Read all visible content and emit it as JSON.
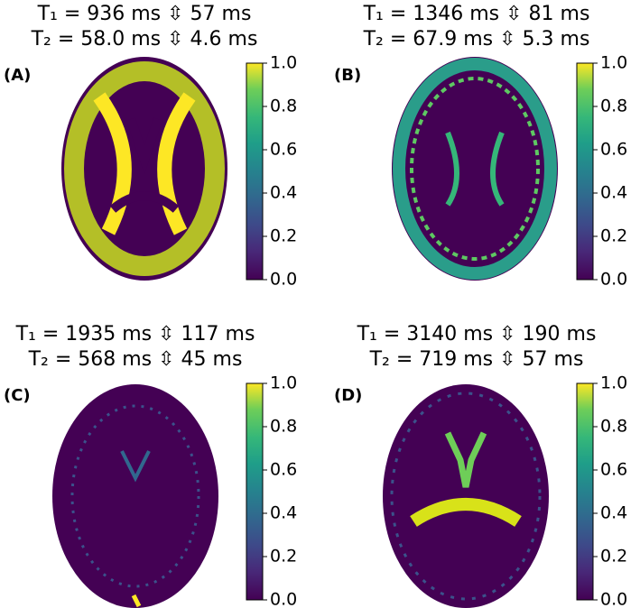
{
  "panels": [
    {
      "label": "(A)",
      "title": [
        "T₁ = 936 ms ⇳ 57 ms",
        "T₂ = 58.0 ms ⇳ 4.6 ms"
      ],
      "colorbar": {
        "ylim": [
          0,
          1
        ],
        "yticks": [
          {
            "value": 0,
            "label": "0.0"
          },
          0.2,
          0.4,
          0.6,
          0.8,
          {
            "value": 1,
            "label": "1.0"
          }
        ]
      }
    },
    {
      "label": "(B)",
      "title": [
        "T₁ = 1346 ms ⇳ 81 ms",
        "T₂ = 67.9 ms ⇳ 5.3 ms"
      ],
      "colorbar": {
        "ylim": [
          0,
          1
        ],
        "yticks": [
          {
            "value": 0,
            "label": "0.0"
          },
          0.2,
          0.4,
          0.6,
          0.8,
          {
            "value": 1,
            "label": "1.0"
          }
        ]
      }
    },
    {
      "label": "(C)",
      "title": [
        "T₁ = 1935 ms ⇳ 117 ms",
        "T₂ = 568 ms ⇳ 45 ms"
      ],
      "colorbar": {
        "ylim": [
          0,
          1
        ],
        "yticks": [
          {
            "value": 0,
            "label": "0.0"
          },
          0.2,
          0.4,
          0.6,
          0.8,
          {
            "value": 1,
            "label": "1.0"
          }
        ]
      }
    },
    {
      "label": "(D)",
      "title": [
        "T₁ = 3140 ms ⇳ 190 ms",
        "T₂ = 719 ms ⇳ 57 ms"
      ],
      "colorbar": {
        "ylim": [
          0,
          1
        ],
        "yticks": [
          {
            "value": 0,
            "label": "0.0"
          },
          0.2,
          0.4,
          0.6,
          0.8,
          {
            "value": 1,
            "label": "1.0"
          }
        ]
      }
    }
  ]
}
